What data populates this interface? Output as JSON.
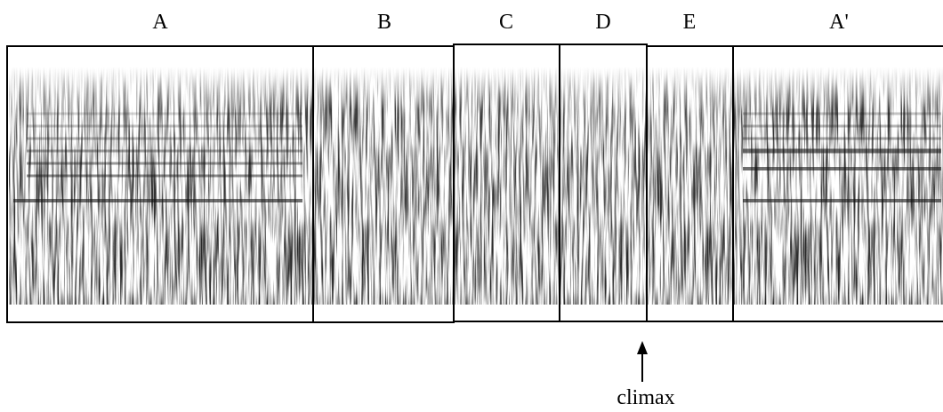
{
  "sections": [
    {
      "label": "A"
    },
    {
      "label": "B"
    },
    {
      "label": "C"
    },
    {
      "label": "D"
    },
    {
      "label": "E"
    },
    {
      "label": "A'"
    }
  ],
  "annotation": "climax"
}
